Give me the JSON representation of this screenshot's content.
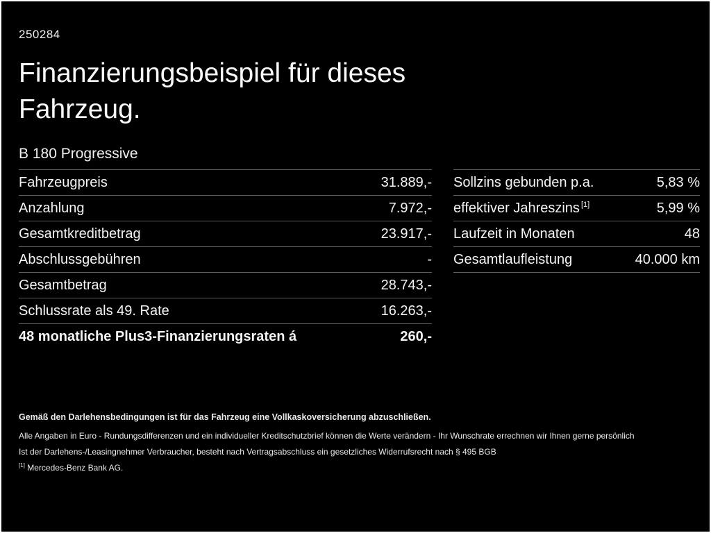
{
  "meta": {
    "ref_number": "250284"
  },
  "header": {
    "title_line1": "Finanzierungsbeispiel für dieses",
    "title_line2": "Fahrzeug.",
    "model": "B 180 Progressive"
  },
  "left_table": {
    "rows": [
      {
        "label": "Fahrzeugpreis",
        "value": "31.889,-"
      },
      {
        "label": "Anzahlung",
        "value": "7.972,-"
      },
      {
        "label": "Gesamtkreditbetrag",
        "value": "23.917,-"
      },
      {
        "label": "Abschlussgebühren",
        "value": "-"
      },
      {
        "label": "Gesamtbetrag",
        "value": "28.743,-"
      },
      {
        "label": "Schlussrate als 49. Rate",
        "value": "16.263,-"
      },
      {
        "label": "48 monatliche Plus3-Finanzierungsraten á",
        "value": "260,-"
      }
    ]
  },
  "right_table": {
    "rows": [
      {
        "label": "Sollzins gebunden p.a.",
        "marker": "",
        "value": "5,83 %"
      },
      {
        "label": "effektiver Jahreszins",
        "marker": "[1]",
        "value": "5,99 %"
      },
      {
        "label": "Laufzeit in Monaten",
        "marker": "",
        "value": "48"
      },
      {
        "label": "Gesamtlaufleistung",
        "marker": "",
        "value": "40.000 km"
      }
    ]
  },
  "footer": {
    "line1": "Gemäß den Darlehensbedingungen ist für das Fahrzeug eine Vollkaskoversicherung abzuschließen.",
    "line2": "Alle Angaben in Euro - Rundungsdifferenzen und ein individueller Kreditschutzbrief können die Werte verändern - Ihr Wunschrate errechnen wir Ihnen gerne persönlich",
    "line3": "Ist der Darlehens-/Leasingnehmer Verbraucher, besteht nach Vertragsabschluss ein gesetzliches Widerrufsrecht nach § 495 BGB",
    "line4_marker": "[1]",
    "line4_text": "Mercedes-Benz Bank AG."
  }
}
